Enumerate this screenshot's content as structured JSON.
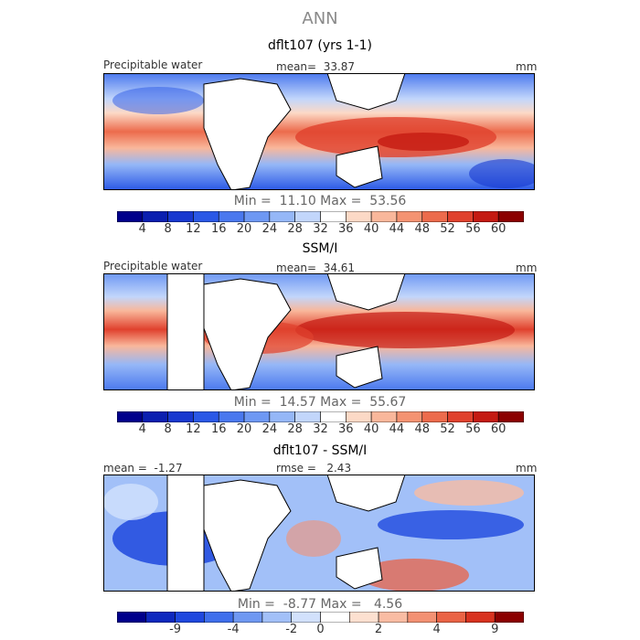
{
  "figure_title": "ANN",
  "panels": [
    {
      "title": "dflt107 (yrs 1-1)",
      "top_left": "Precipitable water",
      "top_center": "mean=  33.87",
      "top_right": "mm",
      "min_max": "Min =  11.10 Max =  53.56"
    },
    {
      "title": "SSM/I",
      "top_left": "Precipitable water",
      "top_center": "mean=  34.61",
      "top_right": "mm",
      "min_max": "Min =  14.57 Max =  55.67"
    },
    {
      "title": "dflt107 - SSM/I",
      "top_left": "mean =  -1.27",
      "top_center": "rmse =   2.43",
      "top_right": "mm",
      "min_max": "Min =  -8.77 Max =   4.56"
    }
  ],
  "colorbar_abs": {
    "ticks": [
      "4",
      "8",
      "12",
      "16",
      "20",
      "24",
      "28",
      "32",
      "36",
      "40",
      "44",
      "48",
      "52",
      "56",
      "60"
    ],
    "colors": [
      "#00008b",
      "#0a1fb0",
      "#1838cf",
      "#2a58e6",
      "#4a78ee",
      "#6e98f3",
      "#95b7f7",
      "#c2d6fb",
      "#ffffff",
      "#fcd9c6",
      "#f9b79b",
      "#f49372",
      "#ec6b4c",
      "#e0412d",
      "#c41a12",
      "#8b0000"
    ]
  },
  "colorbar_diff": {
    "ticks": [
      "-9",
      "-4",
      "-2",
      "0",
      "2",
      "4",
      "9"
    ],
    "colors": [
      "#00008b",
      "#0e28be",
      "#1f48de",
      "#3f6fec",
      "#6f98f2",
      "#a2c0f8",
      "#d2e1fc",
      "#ffffff",
      "#fde0d0",
      "#f9bca3",
      "#f39173",
      "#ea6345",
      "#d8321f",
      "#8b0000"
    ]
  }
}
